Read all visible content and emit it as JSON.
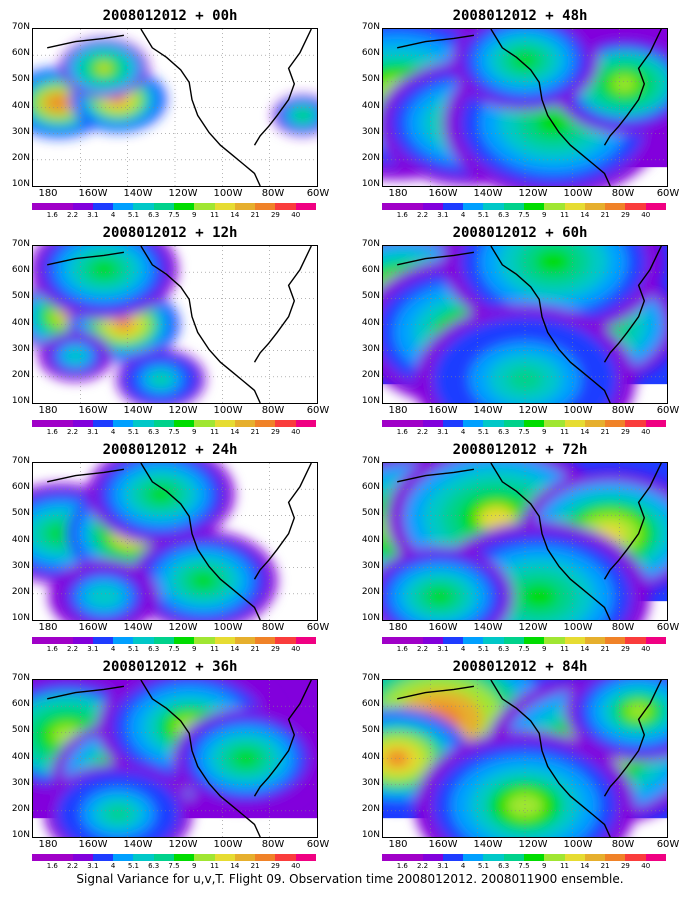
{
  "panels": [
    {
      "title": "2008012012 + 00h",
      "level": 0
    },
    {
      "title": "2008012012 + 48h",
      "level": 4
    },
    {
      "title": "2008012012 + 12h",
      "level": 1
    },
    {
      "title": "2008012012 + 60h",
      "level": 5
    },
    {
      "title": "2008012012 + 24h",
      "level": 2
    },
    {
      "title": "2008012012 + 72h",
      "level": 6
    },
    {
      "title": "2008012012 + 36h",
      "level": 3
    },
    {
      "title": "2008012012 + 84h",
      "level": 7
    }
  ],
  "lat_labels": [
    "70N",
    "60N",
    "50N",
    "40N",
    "30N",
    "20N",
    "10N"
  ],
  "lon_labels": [
    "180",
    "160W",
    "140W",
    "120W",
    "100W",
    "80W",
    "60W"
  ],
  "colorbar_labels": [
    "1.6",
    "2.2",
    "3.1",
    "4",
    "5.1",
    "6.3",
    "7.5",
    "9",
    "11",
    "14",
    "21",
    "29",
    "40"
  ],
  "colorbar_colors": [
    "#a000c8",
    "#8200dc",
    "#1e3cff",
    "#00a0ff",
    "#00c8c8",
    "#00d28c",
    "#00dc00",
    "#a0e632",
    "#e6dc32",
    "#e6af2d",
    "#f08228",
    "#fa3c3c",
    "#f00082"
  ],
  "caption": "Signal Variance for u,v,T. Flight 09. Observation time 2008012012. 2008011900 ensemble."
}
